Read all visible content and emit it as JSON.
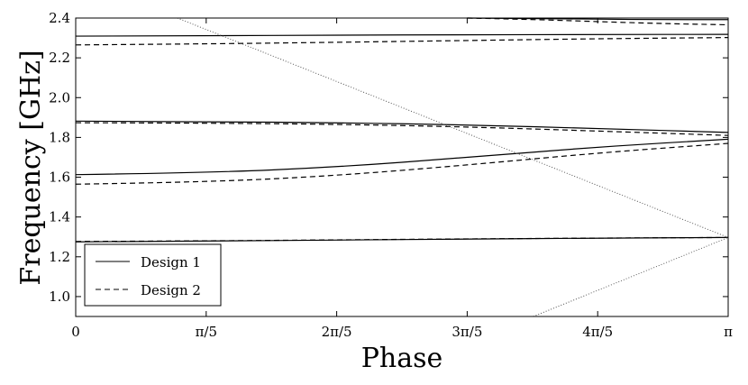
{
  "chart_data": {
    "type": "line",
    "title": "",
    "xlabel": "Phase",
    "ylabel": "Frequency [GHz]",
    "xlim": [
      0,
      3.14159
    ],
    "ylim": [
      0.9,
      2.4
    ],
    "x_ticks": [
      {
        "value": 0,
        "label": "0"
      },
      {
        "value": 0.62832,
        "label": "π/5"
      },
      {
        "value": 1.25664,
        "label": "2π/5"
      },
      {
        "value": 1.88496,
        "label": "3π/5"
      },
      {
        "value": 2.51327,
        "label": "4π/5"
      },
      {
        "value": 3.14159,
        "label": "π"
      }
    ],
    "y_ticks": [
      {
        "value": 1.0,
        "label": "1.0"
      },
      {
        "value": 1.2,
        "label": "1.2"
      },
      {
        "value": 1.4,
        "label": "1.4"
      },
      {
        "value": 1.6,
        "label": "1.6"
      },
      {
        "value": 1.8,
        "label": "1.8"
      },
      {
        "value": 2.0,
        "label": "2.0"
      },
      {
        "value": 2.2,
        "label": "2.2"
      },
      {
        "value": 2.4,
        "label": "2.4"
      }
    ],
    "grid": false,
    "legend_position": "bottom-left",
    "series": [
      {
        "name": "Design 1",
        "style": "solid",
        "color": "#000000",
        "curves": [
          {
            "x": [
              0,
              0.6283,
              1.2566,
              1.885,
              2.5133,
              3.1416
            ],
            "y": [
              1.275,
              1.279,
              1.284,
              1.289,
              1.294,
              1.297
            ]
          },
          {
            "x": [
              0,
              0.6283,
              1.2566,
              1.885,
              2.5133,
              3.1416
            ],
            "y": [
              1.613,
              1.622,
              1.651,
              1.699,
              1.752,
              1.791
            ]
          },
          {
            "x": [
              0,
              0.6283,
              1.2566,
              1.885,
              2.5133,
              3.1416
            ],
            "y": [
              1.882,
              1.879,
              1.874,
              1.863,
              1.845,
              1.825
            ]
          },
          {
            "x": [
              0,
              0.6283,
              1.2566,
              1.885,
              2.5133,
              3.1416
            ],
            "y": [
              2.309,
              2.311,
              2.314,
              2.316,
              2.317,
              2.318
            ]
          },
          {
            "x": [
              1.885,
              2.1991,
              2.5133,
              2.8274,
              3.1416
            ],
            "y": [
              2.4,
              2.398,
              2.394,
              2.392,
              2.392
            ]
          }
        ]
      },
      {
        "name": "Design 2",
        "style": "dashed",
        "color": "#000000",
        "curves": [
          {
            "x": [
              0,
              0.6283,
              1.2566,
              1.885,
              2.5133,
              3.1416
            ],
            "y": [
              1.277,
              1.28,
              1.285,
              1.29,
              1.294,
              1.297
            ]
          },
          {
            "x": [
              0,
              0.6283,
              1.2566,
              1.885,
              2.5133,
              3.1416
            ],
            "y": [
              1.565,
              1.575,
              1.608,
              1.661,
              1.722,
              1.77
            ]
          },
          {
            "x": [
              0,
              0.6283,
              1.2566,
              1.885,
              2.5133,
              3.1416
            ],
            "y": [
              1.874,
              1.872,
              1.866,
              1.853,
              1.832,
              1.81
            ]
          },
          {
            "x": [
              0,
              0.6283,
              1.2566,
              1.885,
              2.5133,
              3.1416
            ],
            "y": [
              2.265,
              2.27,
              2.278,
              2.287,
              2.296,
              2.302
            ]
          },
          {
            "x": [
              1.885,
              2.1991,
              2.5133,
              2.8274,
              3.1416
            ],
            "y": [
              2.4,
              2.393,
              2.382,
              2.372,
              2.366
            ]
          }
        ]
      },
      {
        "style": "dotted",
        "color": "#555555",
        "curves": [
          {
            "x": [
              0.4897,
              3.1416
            ],
            "y": [
              2.4,
              1.297
            ]
          },
          {
            "x": [
              2.2031,
              3.1416
            ],
            "y": [
              0.9,
              1.297
            ]
          }
        ]
      }
    ]
  }
}
